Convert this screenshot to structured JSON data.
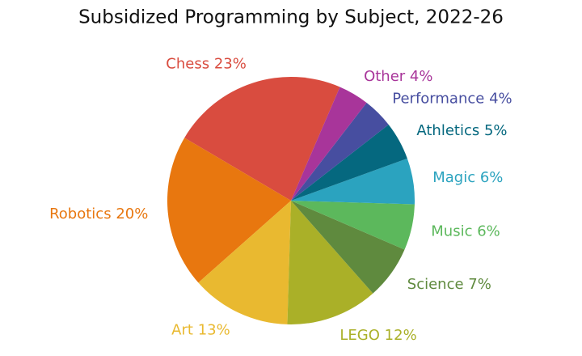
{
  "chart_data": {
    "type": "pie",
    "title": "Subsidized Programming by Subject, 2022-26",
    "categories": [
      "Chess",
      "Robotics",
      "Art",
      "LEGO",
      "Science",
      "Music",
      "Magic",
      "Athletics",
      "Performance",
      "Other"
    ],
    "values": [
      23,
      20,
      13,
      12,
      7,
      6,
      6,
      5,
      4,
      4
    ],
    "value_labels": [
      "23%",
      "20%",
      "13%",
      "12%",
      "7%",
      "6%",
      "6%",
      "5%",
      "4%",
      "4%"
    ],
    "colors": [
      "#d94c3f",
      "#e8770f",
      "#e9b930",
      "#aab028",
      "#5f8a3e",
      "#5cb85c",
      "#2ba3bf",
      "#05687f",
      "#474ea0",
      "#a8359a"
    ]
  }
}
